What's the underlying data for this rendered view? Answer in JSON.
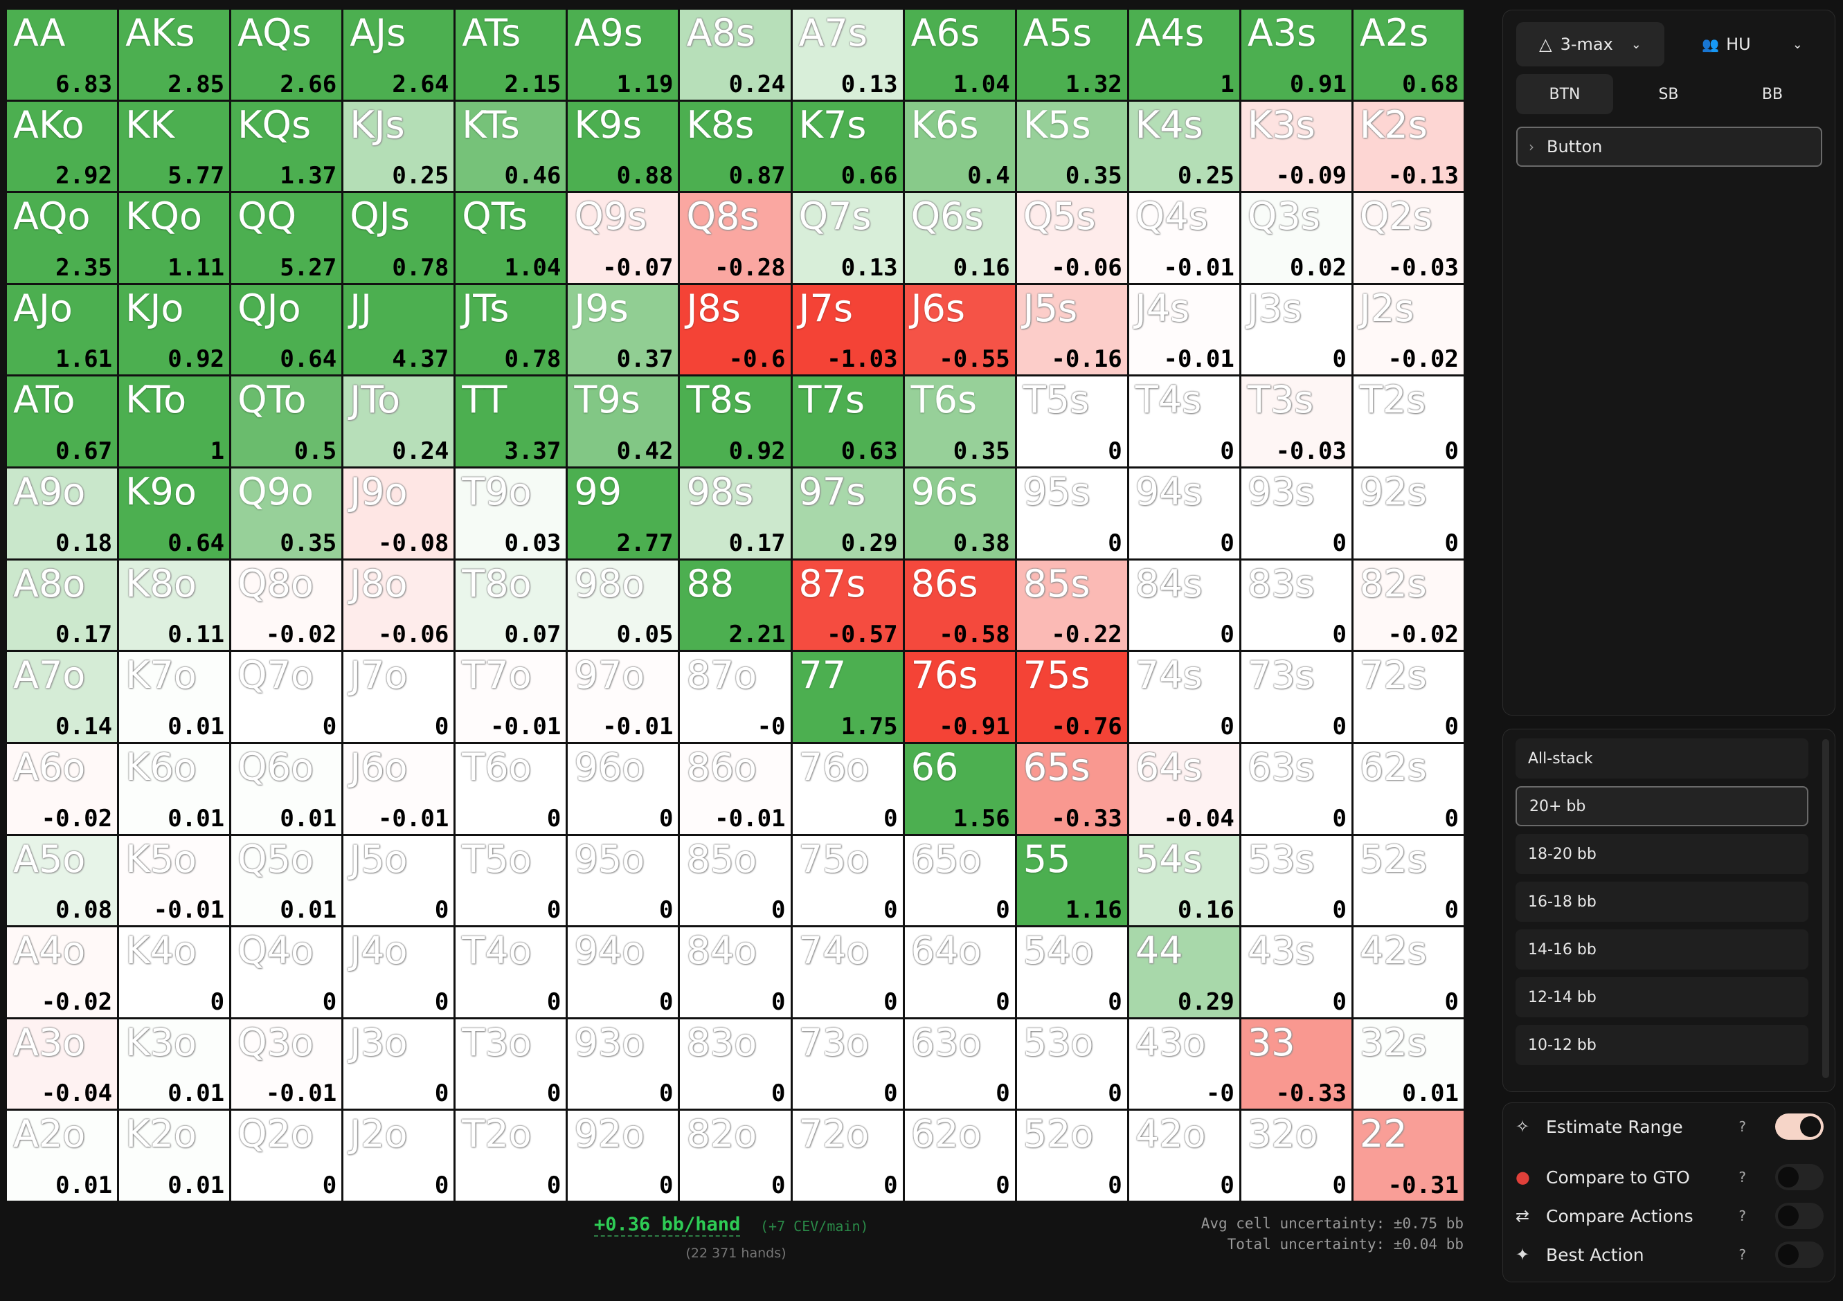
{
  "grid": {
    "rows": [
      [
        [
          "AA",
          "6.83"
        ],
        [
          "AKs",
          "2.85"
        ],
        [
          "AQs",
          "2.66"
        ],
        [
          "AJs",
          "2.64"
        ],
        [
          "ATs",
          "2.15"
        ],
        [
          "A9s",
          "1.19"
        ],
        [
          "A8s",
          "0.24"
        ],
        [
          "A7s",
          "0.13"
        ],
        [
          "A6s",
          "1.04"
        ],
        [
          "A5s",
          "1.32"
        ],
        [
          "A4s",
          "1"
        ],
        [
          "A3s",
          "0.91"
        ],
        [
          "A2s",
          "0.68"
        ]
      ],
      [
        [
          "AKo",
          "2.92"
        ],
        [
          "KK",
          "5.77"
        ],
        [
          "KQs",
          "1.37"
        ],
        [
          "KJs",
          "0.25"
        ],
        [
          "KTs",
          "0.46"
        ],
        [
          "K9s",
          "0.88"
        ],
        [
          "K8s",
          "0.87"
        ],
        [
          "K7s",
          "0.66"
        ],
        [
          "K6s",
          "0.4"
        ],
        [
          "K5s",
          "0.35"
        ],
        [
          "K4s",
          "0.25"
        ],
        [
          "K3s",
          "-0.09"
        ],
        [
          "K2s",
          "-0.13"
        ]
      ],
      [
        [
          "AQo",
          "2.35"
        ],
        [
          "KQo",
          "1.11"
        ],
        [
          "QQ",
          "5.27"
        ],
        [
          "QJs",
          "0.78"
        ],
        [
          "QTs",
          "1.04"
        ],
        [
          "Q9s",
          "-0.07"
        ],
        [
          "Q8s",
          "-0.28"
        ],
        [
          "Q7s",
          "0.13"
        ],
        [
          "Q6s",
          "0.16"
        ],
        [
          "Q5s",
          "-0.06"
        ],
        [
          "Q4s",
          "-0.01"
        ],
        [
          "Q3s",
          "0.02"
        ],
        [
          "Q2s",
          "-0.03"
        ]
      ],
      [
        [
          "AJo",
          "1.61"
        ],
        [
          "KJo",
          "0.92"
        ],
        [
          "QJo",
          "0.64"
        ],
        [
          "JJ",
          "4.37"
        ],
        [
          "JTs",
          "0.78"
        ],
        [
          "J9s",
          "0.37"
        ],
        [
          "J8s",
          "-0.6"
        ],
        [
          "J7s",
          "-1.03"
        ],
        [
          "J6s",
          "-0.55"
        ],
        [
          "J5s",
          "-0.16"
        ],
        [
          "J4s",
          "-0.01"
        ],
        [
          "J3s",
          "0"
        ],
        [
          "J2s",
          "-0.02"
        ]
      ],
      [
        [
          "ATo",
          "0.67"
        ],
        [
          "KTo",
          "1"
        ],
        [
          "QTo",
          "0.5"
        ],
        [
          "JTo",
          "0.24"
        ],
        [
          "TT",
          "3.37"
        ],
        [
          "T9s",
          "0.42"
        ],
        [
          "T8s",
          "0.92"
        ],
        [
          "T7s",
          "0.63"
        ],
        [
          "T6s",
          "0.35"
        ],
        [
          "T5s",
          "0"
        ],
        [
          "T4s",
          "0"
        ],
        [
          "T3s",
          "-0.03"
        ],
        [
          "T2s",
          "0"
        ]
      ],
      [
        [
          "A9o",
          "0.18"
        ],
        [
          "K9o",
          "0.64"
        ],
        [
          "Q9o",
          "0.35"
        ],
        [
          "J9o",
          "-0.08"
        ],
        [
          "T9o",
          "0.03"
        ],
        [
          "99",
          "2.77"
        ],
        [
          "98s",
          "0.17"
        ],
        [
          "97s",
          "0.29"
        ],
        [
          "96s",
          "0.38"
        ],
        [
          "95s",
          "0"
        ],
        [
          "94s",
          "0"
        ],
        [
          "93s",
          "0"
        ],
        [
          "92s",
          "0"
        ]
      ],
      [
        [
          "A8o",
          "0.17"
        ],
        [
          "K8o",
          "0.11"
        ],
        [
          "Q8o",
          "-0.02"
        ],
        [
          "J8o",
          "-0.06"
        ],
        [
          "T8o",
          "0.07"
        ],
        [
          "98o",
          "0.05"
        ],
        [
          "88",
          "2.21"
        ],
        [
          "87s",
          "-0.57"
        ],
        [
          "86s",
          "-0.58"
        ],
        [
          "85s",
          "-0.22"
        ],
        [
          "84s",
          "0"
        ],
        [
          "83s",
          "0"
        ],
        [
          "82s",
          "-0.02"
        ]
      ],
      [
        [
          "A7o",
          "0.14"
        ],
        [
          "K7o",
          "0.01"
        ],
        [
          "Q7o",
          "0"
        ],
        [
          "J7o",
          "0"
        ],
        [
          "T7o",
          "-0.01"
        ],
        [
          "97o",
          "-0.01"
        ],
        [
          "87o",
          "-0"
        ],
        [
          "77",
          "1.75"
        ],
        [
          "76s",
          "-0.91"
        ],
        [
          "75s",
          "-0.76"
        ],
        [
          "74s",
          "0"
        ],
        [
          "73s",
          "0"
        ],
        [
          "72s",
          "0"
        ]
      ],
      [
        [
          "A6o",
          "-0.02"
        ],
        [
          "K6o",
          "0.01"
        ],
        [
          "Q6o",
          "0.01"
        ],
        [
          "J6o",
          "-0.01"
        ],
        [
          "T6o",
          "0"
        ],
        [
          "96o",
          "0"
        ],
        [
          "86o",
          "-0.01"
        ],
        [
          "76o",
          "0"
        ],
        [
          "66",
          "1.56"
        ],
        [
          "65s",
          "-0.33"
        ],
        [
          "64s",
          "-0.04"
        ],
        [
          "63s",
          "0"
        ],
        [
          "62s",
          "0"
        ]
      ],
      [
        [
          "A5o",
          "0.08"
        ],
        [
          "K5o",
          "-0.01"
        ],
        [
          "Q5o",
          "0.01"
        ],
        [
          "J5o",
          "0"
        ],
        [
          "T5o",
          "0"
        ],
        [
          "95o",
          "0"
        ],
        [
          "85o",
          "0"
        ],
        [
          "75o",
          "0"
        ],
        [
          "65o",
          "0"
        ],
        [
          "55",
          "1.16"
        ],
        [
          "54s",
          "0.16"
        ],
        [
          "53s",
          "0"
        ],
        [
          "52s",
          "0"
        ]
      ],
      [
        [
          "A4o",
          "-0.02"
        ],
        [
          "K4o",
          "0"
        ],
        [
          "Q4o",
          "0"
        ],
        [
          "J4o",
          "0"
        ],
        [
          "T4o",
          "0"
        ],
        [
          "94o",
          "0"
        ],
        [
          "84o",
          "0"
        ],
        [
          "74o",
          "0"
        ],
        [
          "64o",
          "0"
        ],
        [
          "54o",
          "0"
        ],
        [
          "44",
          "0.29"
        ],
        [
          "43s",
          "0"
        ],
        [
          "42s",
          "0"
        ]
      ],
      [
        [
          "A3o",
          "-0.04"
        ],
        [
          "K3o",
          "0.01"
        ],
        [
          "Q3o",
          "-0.01"
        ],
        [
          "J3o",
          "0"
        ],
        [
          "T3o",
          "0"
        ],
        [
          "93o",
          "0"
        ],
        [
          "83o",
          "0"
        ],
        [
          "73o",
          "0"
        ],
        [
          "63o",
          "0"
        ],
        [
          "53o",
          "0"
        ],
        [
          "43o",
          "-0"
        ],
        [
          "33",
          "-0.33"
        ],
        [
          "32s",
          "0.01"
        ]
      ],
      [
        [
          "A2o",
          "0.01"
        ],
        [
          "K2o",
          "0.01"
        ],
        [
          "Q2o",
          "0"
        ],
        [
          "J2o",
          "0"
        ],
        [
          "T2o",
          "0"
        ],
        [
          "92o",
          "0"
        ],
        [
          "82o",
          "0"
        ],
        [
          "72o",
          "0"
        ],
        [
          "62o",
          "0"
        ],
        [
          "52o",
          "0"
        ],
        [
          "42o",
          "0"
        ],
        [
          "32o",
          "0"
        ],
        [
          "22",
          "-0.31"
        ]
      ]
    ]
  },
  "footer": {
    "ev": "+0.36 bb/hand",
    "cev": "(+7 CEV/main)",
    "hands": "(22 371 hands)",
    "avg_uncertainty": "Avg cell uncertainty: ±0.75 bb",
    "total_uncertainty": "Total uncertainty: ±0.04 bb"
  },
  "panel": {
    "format": "3-max",
    "players": "HU",
    "positions": [
      "BTN",
      "SB",
      "BB"
    ],
    "active_position": 0,
    "node": "Button",
    "stacks": [
      "All-stack",
      "20+ bb",
      "18-20 bb",
      "16-18 bb",
      "14-16 bb",
      "12-14 bb",
      "10-12 bb"
    ],
    "active_stack": 1,
    "toggles": [
      {
        "label": "Estimate Range",
        "on": true
      },
      {
        "label": "Compare to GTO",
        "on": false
      },
      {
        "label": "Compare Actions",
        "on": false
      },
      {
        "label": "Best Action",
        "on": false
      }
    ],
    "help": "?"
  }
}
